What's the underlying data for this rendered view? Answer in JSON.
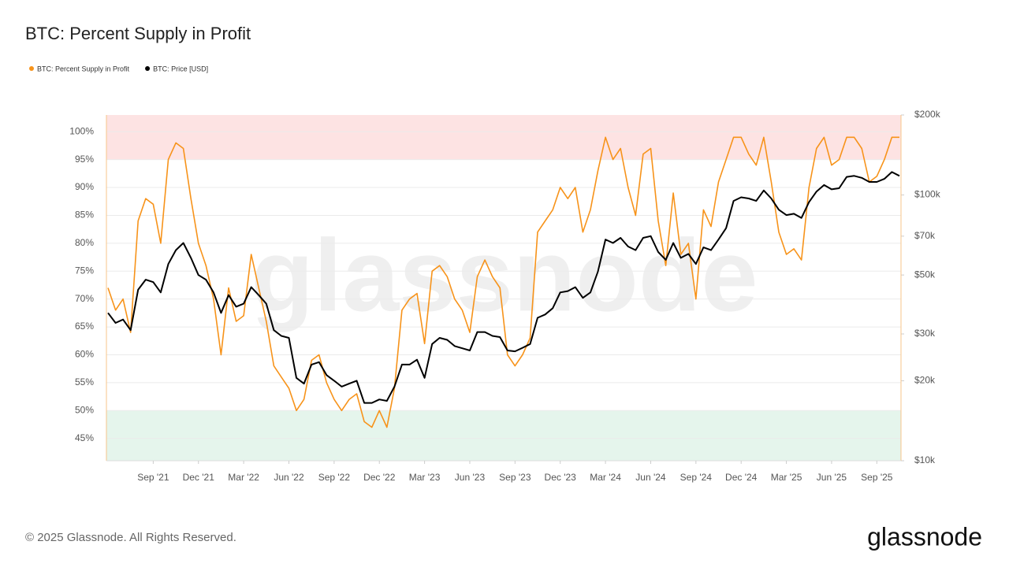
{
  "chart_data": {
    "type": "line",
    "title": "BTC: Percent Supply in Profit",
    "categories": [
      null,
      null,
      null,
      null,
      null,
      null,
      "Sep '21",
      null,
      null,
      null,
      null,
      null,
      "Dec '21",
      null,
      null,
      null,
      null,
      null,
      "Mar '22",
      null,
      null,
      null,
      null,
      null,
      "Jun '22",
      null,
      null,
      null,
      null,
      null,
      "Sep '22",
      null,
      null,
      null,
      null,
      null,
      "Dec '22",
      null,
      null,
      null,
      null,
      null,
      "Mar '23",
      null,
      null,
      null,
      null,
      null,
      "Jun '23",
      null,
      null,
      null,
      null,
      null,
      "Sep '23",
      null,
      null,
      null,
      null,
      null,
      "Dec '23",
      null,
      null,
      null,
      null,
      null,
      "Mar '24",
      null,
      null,
      null,
      null,
      null,
      "Jun '24",
      null,
      null,
      null,
      null,
      null,
      "Sep '24",
      null,
      null,
      null,
      null,
      null,
      "Dec '24",
      null,
      null,
      null,
      null,
      null,
      "Mar '25",
      null,
      null,
      null,
      null,
      null,
      "Jun '25",
      null,
      null,
      null,
      null,
      null,
      "Sep '25",
      null,
      null,
      null
    ],
    "series": [
      {
        "name": "BTC: Percent Supply in Profit",
        "color": "#f7931a",
        "values": [
          72,
          68,
          70,
          64,
          84,
          88,
          87,
          80,
          95,
          98,
          97,
          88,
          80,
          76,
          70,
          60,
          72,
          66,
          67,
          78,
          72,
          66,
          58,
          56,
          54,
          50,
          52,
          59,
          60,
          55,
          52,
          50,
          52,
          53,
          48,
          47,
          50,
          47,
          54,
          68,
          70,
          71,
          62,
          75,
          76,
          74,
          70,
          68,
          64,
          74,
          77,
          74,
          72,
          60,
          58,
          60,
          63,
          82,
          84,
          86,
          90,
          88,
          90,
          82,
          86,
          93,
          99,
          95,
          97,
          90,
          85,
          96,
          97,
          84,
          76,
          89,
          78,
          80,
          70,
          86,
          83,
          91,
          95,
          99,
          99,
          96,
          94,
          99,
          91,
          82,
          78,
          79,
          77,
          90,
          97,
          99,
          94,
          95,
          99,
          99,
          97,
          91,
          92,
          95,
          99,
          99
        ]
      },
      {
        "name": "BTC: Price [USD]",
        "color": "#000000",
        "axis": "y2",
        "values": [
          36000,
          33000,
          34000,
          31000,
          44000,
          48000,
          47000,
          43000,
          55000,
          62000,
          66000,
          58000,
          50000,
          48000,
          43000,
          36000,
          42000,
          38000,
          39000,
          45000,
          42000,
          39000,
          31000,
          29500,
          29000,
          20500,
          19500,
          23000,
          23500,
          21000,
          20000,
          19000,
          19500,
          20000,
          16500,
          16500,
          17000,
          16800,
          19000,
          23000,
          23000,
          24000,
          20500,
          27500,
          29000,
          28500,
          27000,
          26500,
          26000,
          30500,
          30500,
          29500,
          29200,
          26000,
          25800,
          26600,
          27500,
          34500,
          35500,
          37500,
          43000,
          43500,
          45000,
          41000,
          43000,
          51500,
          68000,
          66000,
          69000,
          64000,
          62000,
          69000,
          70000,
          61000,
          57000,
          66000,
          58000,
          60000,
          55000,
          63500,
          62000,
          68000,
          75000,
          95000,
          98000,
          97000,
          95000,
          104000,
          97000,
          88000,
          84000,
          85000,
          82000,
          94000,
          103000,
          109000,
          105000,
          106000,
          117000,
          118000,
          116000,
          112000,
          112000,
          115000,
          122000,
          118000
        ]
      }
    ],
    "ylim": [
      41,
      103
    ],
    "yticks": [
      {
        "value": 45,
        "label": "45%"
      },
      {
        "value": 50,
        "label": "50%"
      },
      {
        "value": 55,
        "label": "55%"
      },
      {
        "value": 60,
        "label": "60%"
      },
      {
        "value": 65,
        "label": "65%"
      },
      {
        "value": 70,
        "label": "70%"
      },
      {
        "value": 75,
        "label": "75%"
      },
      {
        "value": 80,
        "label": "80%"
      },
      {
        "value": 85,
        "label": "85%"
      },
      {
        "value": 90,
        "label": "90%"
      },
      {
        "value": 95,
        "label": "95%"
      },
      {
        "value": 100,
        "label": "100%"
      }
    ],
    "y2lim": [
      10000,
      200000
    ],
    "y2ticks": [
      {
        "value": 10000,
        "label": "$10k"
      },
      {
        "value": 20000,
        "label": "$20k"
      },
      {
        "value": 30000,
        "label": "$30k"
      },
      {
        "value": 50000,
        "label": "$50k"
      },
      {
        "value": 70000,
        "label": "$70k"
      },
      {
        "value": 100000,
        "label": "$100k"
      },
      {
        "value": 200000,
        "label": "$200k"
      }
    ],
    "y2_log": true,
    "grid": true,
    "legend": "top-left",
    "bands": [
      {
        "from": 95,
        "to": 103,
        "color": "#fde3e3"
      },
      {
        "from": 41,
        "to": 50,
        "color": "#e5f5ec"
      }
    ]
  },
  "watermark": "glassnode",
  "copyright": "© 2025 Glassnode. All Rights Reserved.",
  "logo": "glassnode"
}
